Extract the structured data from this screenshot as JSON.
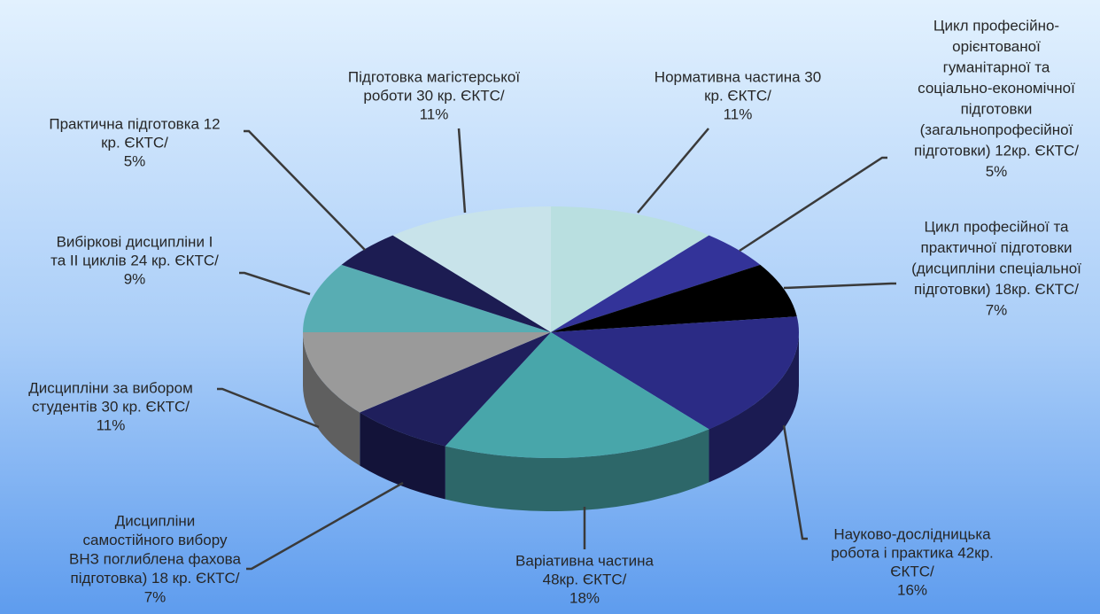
{
  "chart_data": {
    "type": "pie3d",
    "categories": [
      [
        "Нормативна частина 30",
        "кр. ЄКТС/"
      ],
      [
        "Цикл професійно-",
        "орієнтованої",
        "гуманітарної  та",
        "соціально-економічної",
        "підготовки",
        "(загальнопрофесійної",
        "підготовки) 12кр. ЄКТС/"
      ],
      [
        "Цикл професійної  та",
        "практичної підготовки",
        "(дисципліни спеціальної",
        "підготовки) 18кр. ЄКТС/"
      ],
      [
        "Науково-дослідницька",
        "робота і практика 42кр.",
        "ЄКТС/"
      ],
      [
        "Варіативна частина",
        "48кр. ЄКТС/"
      ],
      [
        "Дисципліни",
        "самостійного вибору",
        "ВНЗ поглиблена фахова",
        "підготовка) 18 кр. ЄКТС/"
      ],
      [
        "Дисципліни за вибором",
        "студентів 30 кр. ЄКТС/"
      ],
      [
        "Вибіркові дисципліни  І",
        "та ІІ циклів 24 кр. ЄКТС/"
      ],
      [
        "Практична підготовка 12",
        "кр. ЄКТС/"
      ],
      [
        "Підготовка магістерської",
        "роботи 30 кр. ЄКТС/"
      ]
    ],
    "values": [
      11,
      5,
      7,
      16,
      18,
      7,
      11,
      9,
      5,
      11
    ],
    "value_labels": [
      "11%",
      "5%",
      "7%",
      "16%",
      "18%",
      "7%",
      "11%",
      "9%",
      "5%",
      "11%"
    ],
    "colors": [
      "#b9dfe0",
      "#333399",
      "#000000",
      "#2b2b85",
      "#48a6aa",
      "#1f1f5c",
      "#9a9a9a",
      "#58adb3",
      "#1c1c52",
      "#c8e3ea"
    ]
  }
}
